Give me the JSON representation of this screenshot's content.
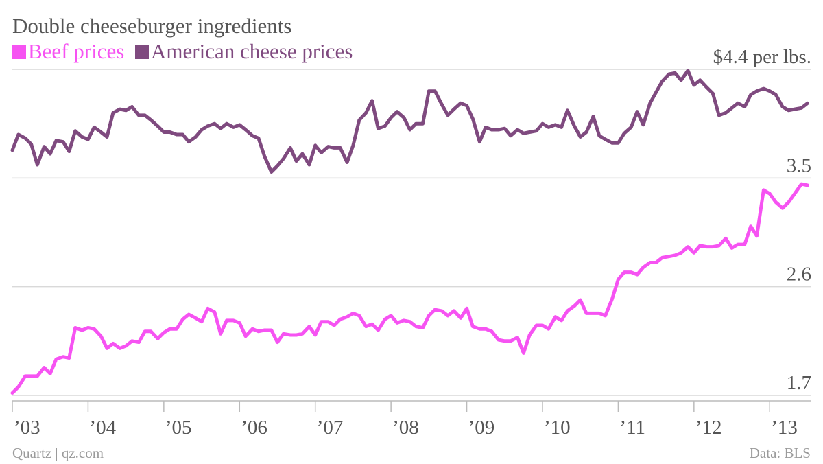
{
  "title": "Double cheeseburger ingredients",
  "source_left": "Quartz | qz.com",
  "source_right": "Data: BLS",
  "colors": {
    "beef": "#f653f2",
    "cheese": "#7f4a7f",
    "grid": "#d9d9d9",
    "axis": "#bbbbbb"
  },
  "chart_data": {
    "type": "line",
    "title": "Double cheeseburger ingredients",
    "xlabel": "",
    "ylabel": "",
    "ylim": [
      1.7,
      4.4
    ],
    "yticks": [
      1.7,
      2.6,
      3.5,
      4.4
    ],
    "ytick_labels": [
      "1.7",
      "2.6",
      "3.5",
      "$4.4 per lbs."
    ],
    "xlim": [
      2003.0,
      2013.55
    ],
    "xticks": [
      2003,
      2004,
      2005,
      2006,
      2007,
      2008,
      2009,
      2010,
      2011,
      2012,
      2013
    ],
    "xtick_labels": [
      "’03",
      "’04",
      "’05",
      "’06",
      "’07",
      "’08",
      "’09",
      "’10",
      "’11",
      "’12",
      "’13"
    ],
    "legend": "top-left",
    "grid": true,
    "series": [
      {
        "name": "Beef prices",
        "x": [
          2003.0,
          2003.08,
          2003.17,
          2003.25,
          2003.33,
          2003.42,
          2003.5,
          2003.58,
          2003.67,
          2003.75,
          2003.83,
          2003.92,
          2004.0,
          2004.08,
          2004.17,
          2004.25,
          2004.33,
          2004.42,
          2004.5,
          2004.58,
          2004.67,
          2004.75,
          2004.83,
          2004.92,
          2005.0,
          2005.08,
          2005.17,
          2005.25,
          2005.33,
          2005.42,
          2005.5,
          2005.58,
          2005.67,
          2005.75,
          2005.83,
          2005.92,
          2006.0,
          2006.08,
          2006.17,
          2006.25,
          2006.33,
          2006.42,
          2006.5,
          2006.58,
          2006.67,
          2006.75,
          2006.83,
          2006.92,
          2007.0,
          2007.08,
          2007.17,
          2007.25,
          2007.33,
          2007.42,
          2007.5,
          2007.58,
          2007.67,
          2007.75,
          2007.83,
          2007.92,
          2008.0,
          2008.08,
          2008.17,
          2008.25,
          2008.33,
          2008.42,
          2008.5,
          2008.58,
          2008.67,
          2008.75,
          2008.83,
          2008.92,
          2009.0,
          2009.08,
          2009.17,
          2009.25,
          2009.33,
          2009.42,
          2009.5,
          2009.58,
          2009.67,
          2009.75,
          2009.83,
          2009.92,
          2010.0,
          2010.08,
          2010.17,
          2010.25,
          2010.33,
          2010.42,
          2010.5,
          2010.58,
          2010.67,
          2010.75,
          2010.83,
          2010.92,
          2011.0,
          2011.08,
          2011.17,
          2011.25,
          2011.33,
          2011.42,
          2011.5,
          2011.58,
          2011.67,
          2011.75,
          2011.83,
          2011.92,
          2012.0,
          2012.08,
          2012.17,
          2012.25,
          2012.33,
          2012.42,
          2012.5,
          2012.58,
          2012.67,
          2012.75,
          2012.83,
          2012.92,
          2013.0,
          2013.08,
          2013.17,
          2013.25,
          2013.33,
          2013.42,
          2013.5
        ],
        "values": [
          1.72,
          1.77,
          1.86,
          1.86,
          1.86,
          1.93,
          1.88,
          2.0,
          2.02,
          2.01,
          2.26,
          2.24,
          2.26,
          2.25,
          2.19,
          2.09,
          2.13,
          2.09,
          2.11,
          2.15,
          2.14,
          2.23,
          2.23,
          2.17,
          2.22,
          2.25,
          2.25,
          2.33,
          2.37,
          2.34,
          2.31,
          2.42,
          2.39,
          2.21,
          2.32,
          2.32,
          2.3,
          2.19,
          2.25,
          2.23,
          2.24,
          2.24,
          2.14,
          2.21,
          2.2,
          2.2,
          2.21,
          2.27,
          2.2,
          2.31,
          2.31,
          2.28,
          2.33,
          2.35,
          2.38,
          2.36,
          2.27,
          2.29,
          2.24,
          2.33,
          2.36,
          2.3,
          2.32,
          2.31,
          2.27,
          2.26,
          2.36,
          2.41,
          2.4,
          2.36,
          2.4,
          2.34,
          2.42,
          2.27,
          2.25,
          2.25,
          2.23,
          2.16,
          2.15,
          2.15,
          2.18,
          2.05,
          2.2,
          2.28,
          2.28,
          2.25,
          2.35,
          2.32,
          2.4,
          2.44,
          2.49,
          2.38,
          2.38,
          2.38,
          2.36,
          2.5,
          2.66,
          2.72,
          2.72,
          2.7,
          2.76,
          2.8,
          2.8,
          2.84,
          2.85,
          2.86,
          2.88,
          2.93,
          2.88,
          2.94,
          2.93,
          2.93,
          2.94,
          3.0,
          2.92,
          2.95,
          2.95,
          3.1,
          3.02,
          3.4,
          3.37,
          3.3,
          3.25,
          3.3,
          3.37,
          3.45,
          3.44
        ]
      },
      {
        "name": "American cheese prices",
        "x": [
          2003.0,
          2003.08,
          2003.17,
          2003.25,
          2003.33,
          2003.42,
          2003.5,
          2003.58,
          2003.67,
          2003.75,
          2003.83,
          2003.92,
          2004.0,
          2004.08,
          2004.17,
          2004.25,
          2004.33,
          2004.42,
          2004.5,
          2004.58,
          2004.67,
          2004.75,
          2004.83,
          2004.92,
          2005.0,
          2005.08,
          2005.17,
          2005.25,
          2005.33,
          2005.42,
          2005.5,
          2005.58,
          2005.67,
          2005.75,
          2005.83,
          2005.92,
          2006.0,
          2006.08,
          2006.17,
          2006.25,
          2006.33,
          2006.42,
          2006.5,
          2006.58,
          2006.67,
          2006.75,
          2006.83,
          2006.92,
          2007.0,
          2007.08,
          2007.17,
          2007.25,
          2007.33,
          2007.42,
          2007.5,
          2007.58,
          2007.67,
          2007.75,
          2007.83,
          2007.92,
          2008.0,
          2008.08,
          2008.17,
          2008.25,
          2008.33,
          2008.42,
          2008.5,
          2008.58,
          2008.67,
          2008.75,
          2008.83,
          2008.92,
          2009.0,
          2009.08,
          2009.17,
          2009.25,
          2009.33,
          2009.42,
          2009.5,
          2009.58,
          2009.67,
          2009.75,
          2009.83,
          2009.92,
          2010.0,
          2010.08,
          2010.17,
          2010.25,
          2010.33,
          2010.42,
          2010.5,
          2010.58,
          2010.67,
          2010.75,
          2010.83,
          2010.92,
          2011.0,
          2011.08,
          2011.17,
          2011.25,
          2011.33,
          2011.42,
          2011.5,
          2011.58,
          2011.67,
          2011.75,
          2011.83,
          2011.92,
          2012.0,
          2012.08,
          2012.17,
          2012.25,
          2012.33,
          2012.42,
          2012.5,
          2012.58,
          2012.67,
          2012.75,
          2012.83,
          2012.92,
          2013.0,
          2013.08,
          2013.17,
          2013.25,
          2013.33,
          2013.42,
          2013.5
        ],
        "values": [
          3.73,
          3.86,
          3.83,
          3.78,
          3.61,
          3.76,
          3.7,
          3.81,
          3.8,
          3.72,
          3.89,
          3.84,
          3.82,
          3.92,
          3.88,
          3.84,
          4.04,
          4.07,
          4.06,
          4.09,
          4.02,
          4.02,
          3.98,
          3.93,
          3.88,
          3.88,
          3.86,
          3.86,
          3.8,
          3.84,
          3.9,
          3.93,
          3.95,
          3.91,
          3.95,
          3.92,
          3.94,
          3.9,
          3.85,
          3.83,
          3.68,
          3.55,
          3.6,
          3.66,
          3.75,
          3.64,
          3.7,
          3.61,
          3.77,
          3.71,
          3.76,
          3.75,
          3.75,
          3.63,
          3.77,
          3.98,
          4.04,
          4.14,
          3.91,
          3.93,
          4.0,
          4.05,
          4.0,
          3.9,
          3.95,
          3.95,
          4.22,
          4.22,
          4.11,
          4.02,
          4.07,
          4.12,
          4.1,
          3.99,
          3.8,
          3.92,
          3.9,
          3.9,
          3.91,
          3.85,
          3.9,
          3.87,
          3.88,
          3.89,
          3.95,
          3.92,
          3.94,
          3.92,
          4.06,
          3.93,
          3.84,
          3.88,
          4.01,
          3.85,
          3.82,
          3.79,
          3.79,
          3.87,
          3.92,
          4.05,
          3.94,
          4.12,
          4.21,
          4.3,
          4.36,
          4.37,
          4.31,
          4.39,
          4.27,
          4.31,
          4.25,
          4.2,
          4.02,
          4.04,
          4.08,
          4.12,
          4.09,
          4.19,
          4.22,
          4.24,
          4.22,
          4.19,
          4.09,
          4.06,
          4.07,
          4.08,
          4.12
        ]
      }
    ]
  }
}
